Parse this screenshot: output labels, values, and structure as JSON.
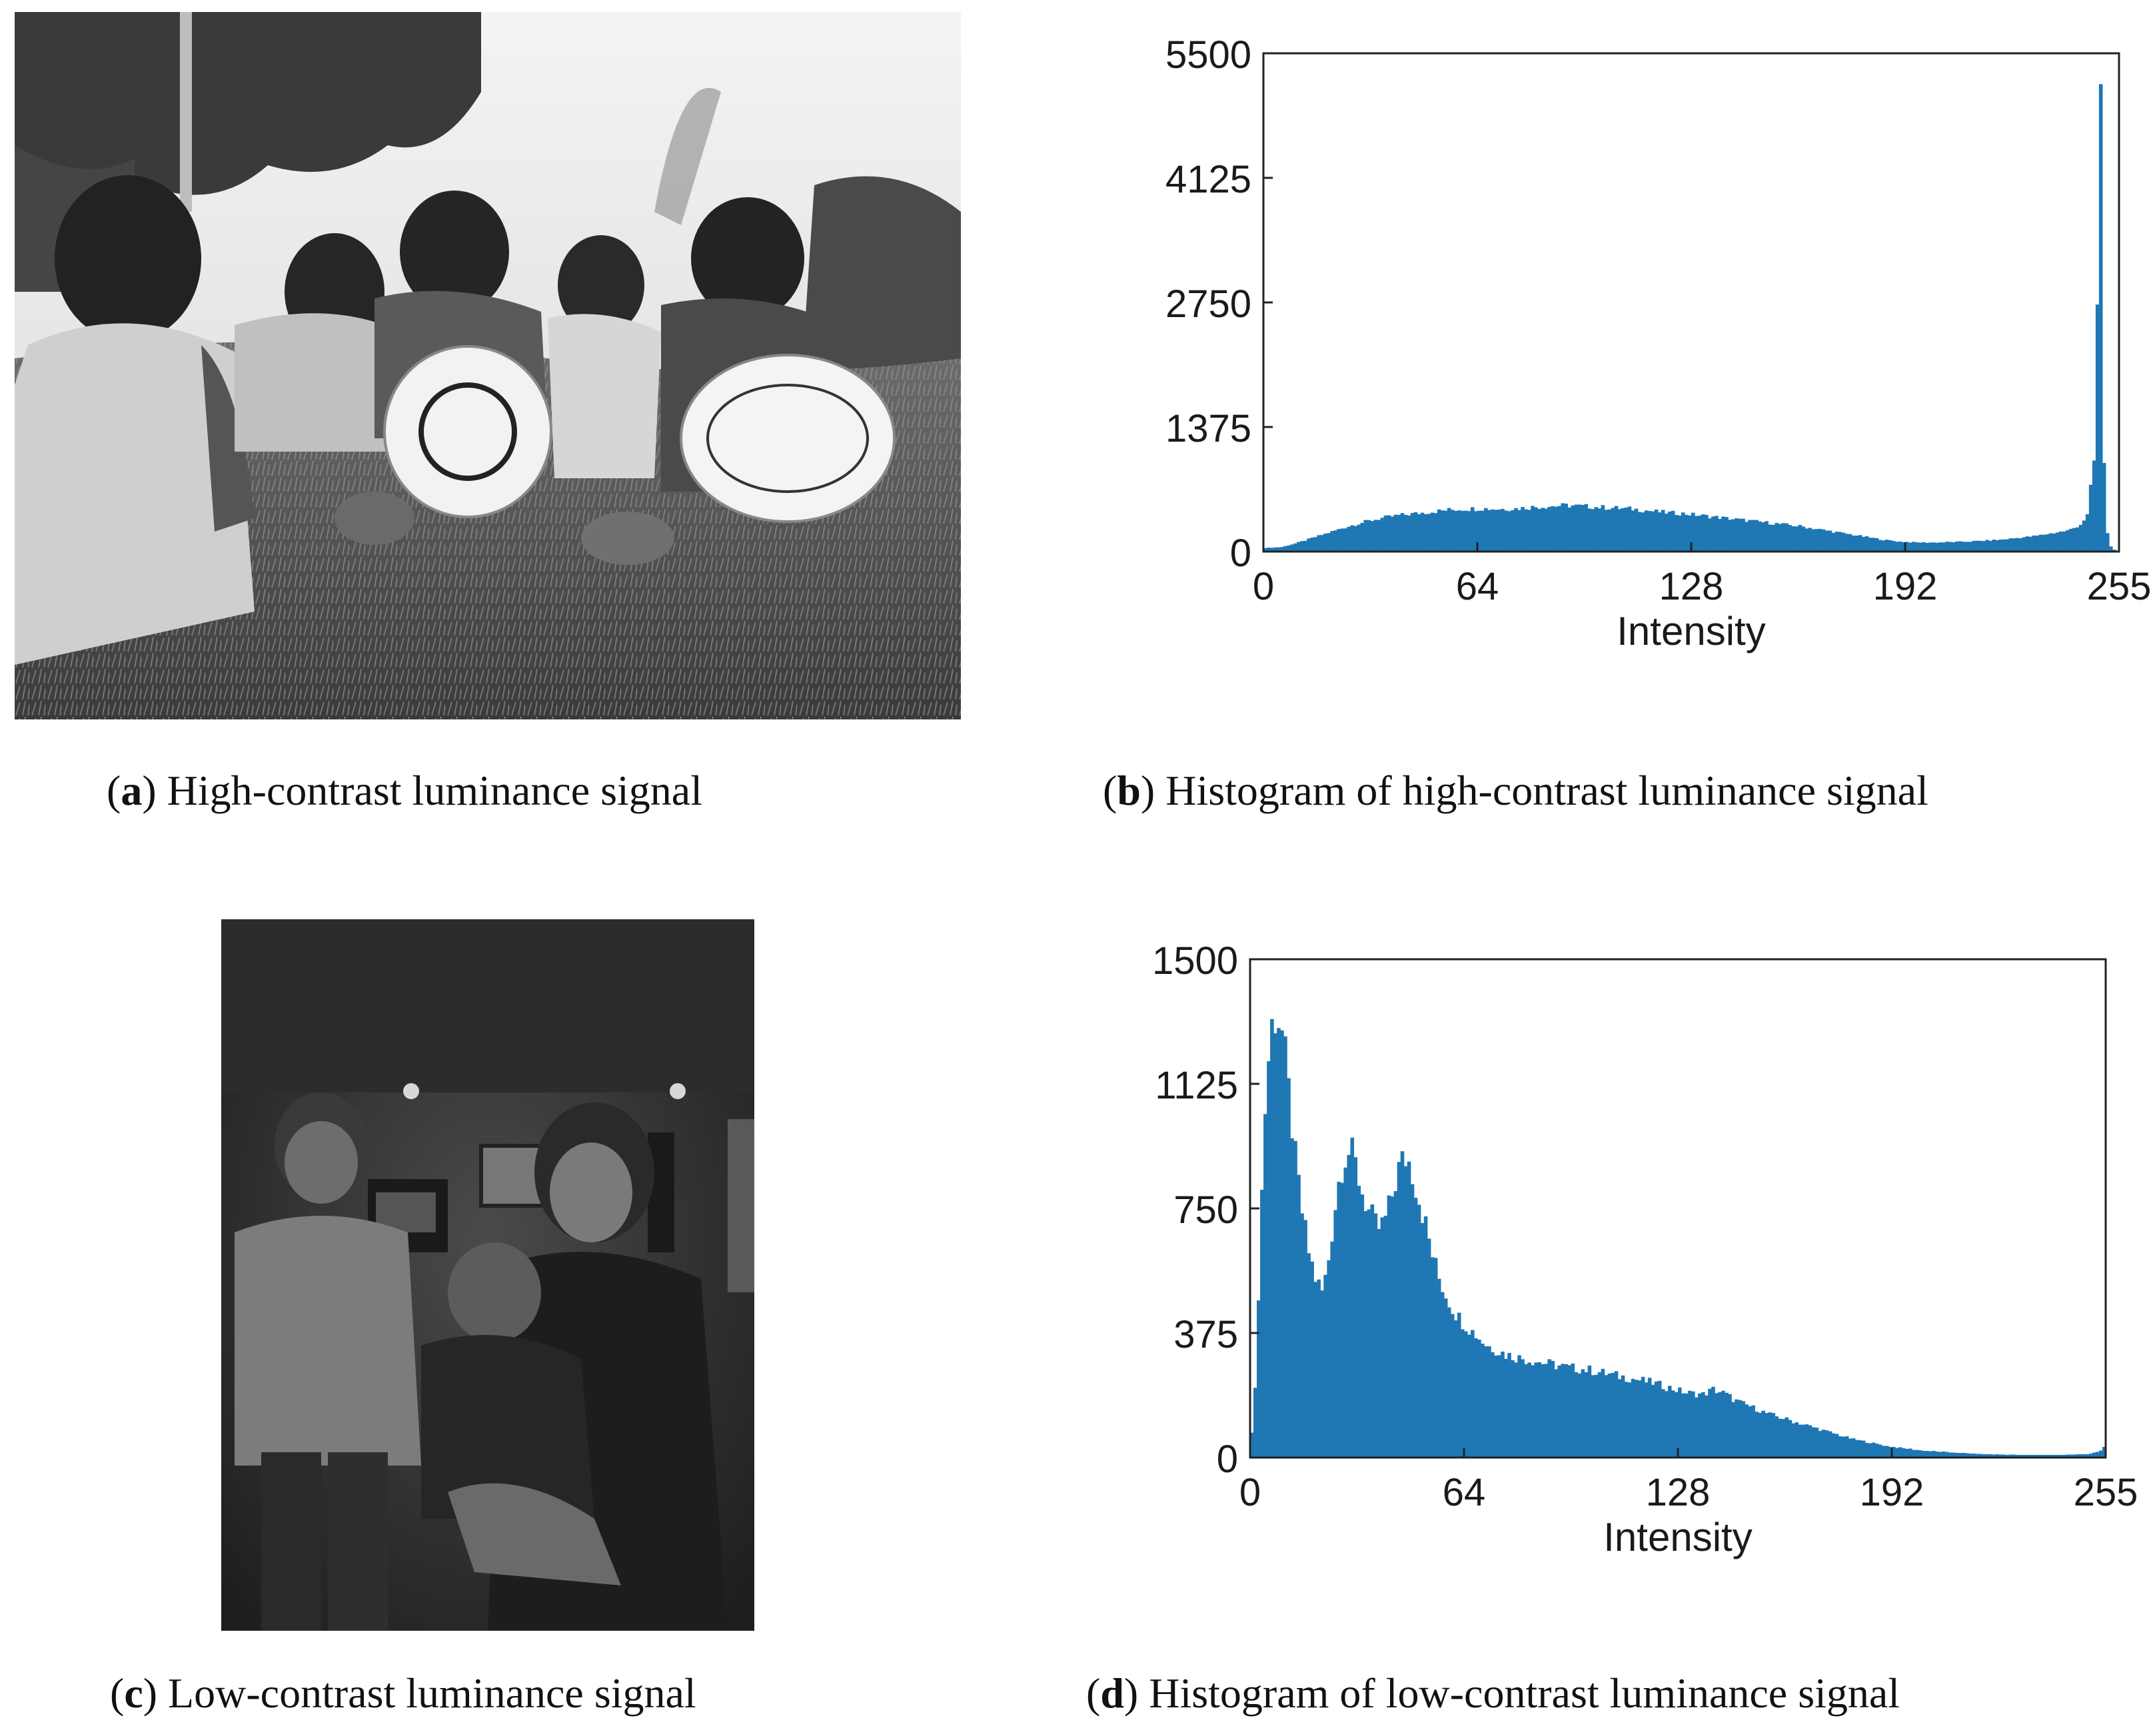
{
  "figures": [
    {
      "letter": "a",
      "caption": "High-contrast luminance signal"
    },
    {
      "letter": "b",
      "caption": "Histogram of high-contrast luminance signal"
    },
    {
      "letter": "c",
      "caption": "Low-contrast luminance signal"
    },
    {
      "letter": "d",
      "caption": "Histogram of low-contrast luminance signal"
    }
  ],
  "photos": [
    {
      "letter": "a",
      "description_colors": {
        "sky": "#e8e8e8",
        "trees": "#3c3c3c",
        "grass": "#5a5a5a"
      }
    },
    {
      "letter": "c",
      "description_colors": {
        "room": "#3a3a3a",
        "ceiling": "#2a2a2a"
      }
    }
  ],
  "chart_data": [
    {
      "type": "bar",
      "xlabel": "Intensity",
      "ylabel": "",
      "title": "",
      "xlim": [
        0,
        255
      ],
      "ylim": [
        0,
        5500
      ],
      "xticks": [
        0,
        64,
        128,
        192,
        255
      ],
      "yticks": [
        0,
        1375,
        2750,
        4125,
        5500
      ],
      "color": "#1f77b4",
      "control_points": [
        [
          0,
          40
        ],
        [
          5,
          50
        ],
        [
          10,
          100
        ],
        [
          15,
          160
        ],
        [
          20,
          220
        ],
        [
          25,
          280
        ],
        [
          30,
          330
        ],
        [
          35,
          370
        ],
        [
          40,
          400
        ],
        [
          45,
          420
        ],
        [
          50,
          440
        ],
        [
          55,
          460
        ],
        [
          60,
          470
        ],
        [
          65,
          475
        ],
        [
          70,
          470
        ],
        [
          75,
          475
        ],
        [
          80,
          490
        ],
        [
          85,
          500
        ],
        [
          90,
          510
        ],
        [
          95,
          500
        ],
        [
          100,
          490
        ],
        [
          105,
          480
        ],
        [
          110,
          470
        ],
        [
          115,
          450
        ],
        [
          120,
          430
        ],
        [
          125,
          420
        ],
        [
          130,
          400
        ],
        [
          135,
          380
        ],
        [
          140,
          360
        ],
        [
          145,
          340
        ],
        [
          150,
          320
        ],
        [
          155,
          300
        ],
        [
          160,
          280
        ],
        [
          165,
          250
        ],
        [
          170,
          220
        ],
        [
          175,
          190
        ],
        [
          180,
          160
        ],
        [
          185,
          130
        ],
        [
          190,
          110
        ],
        [
          195,
          100
        ],
        [
          200,
          100
        ],
        [
          205,
          105
        ],
        [
          210,
          110
        ],
        [
          215,
          120
        ],
        [
          220,
          130
        ],
        [
          225,
          150
        ],
        [
          230,
          170
        ],
        [
          235,
          200
        ],
        [
          240,
          230
        ],
        [
          242,
          260
        ],
        [
          244,
          300
        ],
        [
          246,
          400
        ],
        [
          248,
          1000
        ],
        [
          249,
          2700
        ],
        [
          250,
          5000
        ],
        [
          251,
          1000
        ],
        [
          252,
          200
        ],
        [
          253,
          60
        ],
        [
          254,
          20
        ],
        [
          255,
          10
        ]
      ]
    },
    {
      "type": "bar",
      "xlabel": "Intensity",
      "ylabel": "",
      "title": "",
      "xlim": [
        0,
        255
      ],
      "ylim": [
        0,
        1500
      ],
      "xticks": [
        0,
        64,
        128,
        192,
        255
      ],
      "yticks": [
        0,
        375,
        750,
        1125,
        1500
      ],
      "color": "#1f77b4",
      "control_points": [
        [
          0,
          80
        ],
        [
          1,
          200
        ],
        [
          2,
          500
        ],
        [
          3,
          800
        ],
        [
          4,
          1050
        ],
        [
          5,
          1200
        ],
        [
          6,
          1300
        ],
        [
          7,
          1330
        ],
        [
          8,
          1320
        ],
        [
          9,
          1280
        ],
        [
          10,
          1200
        ],
        [
          11,
          1100
        ],
        [
          12,
          1000
        ],
        [
          13,
          900
        ],
        [
          14,
          820
        ],
        [
          15,
          740
        ],
        [
          16,
          680
        ],
        [
          17,
          620
        ],
        [
          18,
          580
        ],
        [
          19,
          540
        ],
        [
          20,
          520
        ],
        [
          21,
          500
        ],
        [
          22,
          540
        ],
        [
          23,
          600
        ],
        [
          24,
          680
        ],
        [
          25,
          760
        ],
        [
          26,
          830
        ],
        [
          27,
          880
        ],
        [
          28,
          910
        ],
        [
          29,
          920
        ],
        [
          30,
          910
        ],
        [
          31,
          880
        ],
        [
          32,
          840
        ],
        [
          33,
          800
        ],
        [
          34,
          770
        ],
        [
          35,
          740
        ],
        [
          36,
          720
        ],
        [
          37,
          700
        ],
        [
          38,
          690
        ],
        [
          39,
          700
        ],
        [
          40,
          720
        ],
        [
          41,
          750
        ],
        [
          42,
          790
        ],
        [
          43,
          830
        ],
        [
          44,
          870
        ],
        [
          45,
          890
        ],
        [
          46,
          900
        ],
        [
          47,
          890
        ],
        [
          48,
          860
        ],
        [
          49,
          820
        ],
        [
          50,
          780
        ],
        [
          52,
          700
        ],
        [
          54,
          610
        ],
        [
          56,
          540
        ],
        [
          58,
          490
        ],
        [
          60,
          450
        ],
        [
          62,
          420
        ],
        [
          64,
          400
        ],
        [
          66,
          380
        ],
        [
          68,
          360
        ],
        [
          70,
          340
        ],
        [
          72,
          330
        ],
        [
          74,
          320
        ],
        [
          76,
          310
        ],
        [
          80,
          300
        ],
        [
          85,
          290
        ],
        [
          90,
          280
        ],
        [
          95,
          270
        ],
        [
          100,
          265
        ],
        [
          105,
          255
        ],
        [
          110,
          245
        ],
        [
          115,
          235
        ],
        [
          120,
          225
        ],
        [
          125,
          210
        ],
        [
          130,
          195
        ],
        [
          135,
          190
        ],
        [
          138,
          205
        ],
        [
          141,
          195
        ],
        [
          145,
          170
        ],
        [
          150,
          150
        ],
        [
          155,
          130
        ],
        [
          160,
          115
        ],
        [
          165,
          100
        ],
        [
          170,
          85
        ],
        [
          175,
          70
        ],
        [
          180,
          55
        ],
        [
          185,
          45
        ],
        [
          190,
          35
        ],
        [
          195,
          28
        ],
        [
          200,
          22
        ],
        [
          205,
          18
        ],
        [
          210,
          15
        ],
        [
          215,
          12
        ],
        [
          220,
          10
        ],
        [
          230,
          8
        ],
        [
          240,
          8
        ],
        [
          250,
          10
        ],
        [
          254,
          20
        ],
        [
          255,
          30
        ]
      ]
    }
  ]
}
